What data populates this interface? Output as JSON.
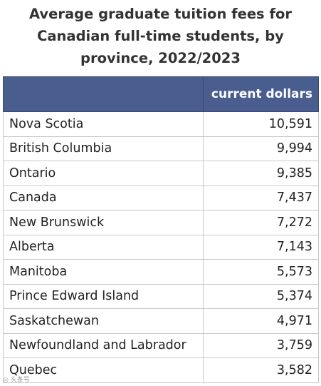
{
  "chart_data": {
    "type": "table",
    "title_lines": [
      "Average graduate tuition fees for",
      "Canadian full-time students, by",
      "province, 2022/2023"
    ],
    "column_headers": [
      "",
      "current dollars"
    ],
    "rows": [
      {
        "label": "Nova Scotia",
        "value": "10,591"
      },
      {
        "label": "British Columbia",
        "value": "9,994"
      },
      {
        "label": "Ontario",
        "value": "9,385"
      },
      {
        "label": "Canada",
        "value": "7,437"
      },
      {
        "label": "New Brunswick",
        "value": "7,272"
      },
      {
        "label": "Alberta",
        "value": "7,143"
      },
      {
        "label": "Manitoba",
        "value": "5,573"
      },
      {
        "label": "Prince Edward Island",
        "value": "5,374"
      },
      {
        "label": "Saskatchewan",
        "value": "4,971"
      },
      {
        "label": "Newfoundland and Labrador",
        "value": "3,759"
      },
      {
        "label": "Quebec",
        "value": "3,582"
      }
    ],
    "header_color": "#4a5d8f"
  }
}
